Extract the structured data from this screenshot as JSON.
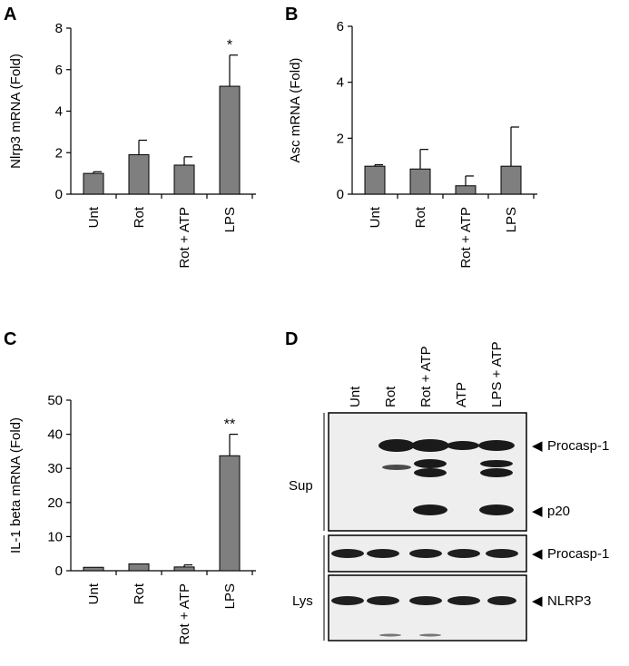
{
  "chart_data": [
    {
      "panel": "A",
      "type": "bar",
      "ylabel": "Nlrp3 mRNA (Fold)",
      "ylim": [
        0,
        8
      ],
      "yticks": [
        "0",
        "2",
        "4",
        "6",
        "8"
      ],
      "categories": [
        "Unt",
        "Rot",
        "Rot + ATP",
        "LPS"
      ],
      "values": [
        1.0,
        1.9,
        1.4,
        5.2
      ],
      "errors": [
        0.08,
        0.7,
        0.4,
        1.5
      ],
      "annotations": [
        "",
        "",
        "",
        "*"
      ],
      "bar_color": "#7f7f7f"
    },
    {
      "panel": "B",
      "type": "bar",
      "ylabel": "Asc mRNA (Fold)",
      "ylim": [
        0,
        6
      ],
      "yticks": [
        "0",
        "2",
        "4",
        "6"
      ],
      "categories": [
        "Unt",
        "Rot",
        "Rot + ATP",
        "LPS"
      ],
      "values": [
        1.0,
        0.9,
        0.3,
        1.0
      ],
      "errors": [
        0.05,
        0.7,
        0.35,
        1.4
      ],
      "annotations": [
        "",
        "",
        "",
        ""
      ],
      "bar_color": "#7f7f7f"
    },
    {
      "panel": "C",
      "type": "bar",
      "ylabel": "IL-1 beta mRNA (Fold)",
      "ylim": [
        0,
        50
      ],
      "yticks": [
        "0",
        "10",
        "20",
        "30",
        "40",
        "50"
      ],
      "categories": [
        "Unt",
        "Rot",
        "Rot + ATP",
        "LPS"
      ],
      "values": [
        1.0,
        2.0,
        1.1,
        33.7
      ],
      "errors": [
        0.0,
        0.0,
        0.6,
        6.3
      ],
      "annotations": [
        "",
        "",
        "",
        "**"
      ],
      "bar_color": "#7f7f7f"
    }
  ],
  "blot": {
    "panel": "D",
    "lanes": [
      "Unt",
      "Rot",
      "Rot + ATP",
      "ATP",
      "LPS + ATP"
    ],
    "groups": [
      {
        "label": "Sup",
        "boxes": 1
      },
      {
        "label": "Lys",
        "boxes": 2
      }
    ],
    "band_labels": [
      "Procasp-1",
      "p20",
      "Procasp-1",
      "NLRP3"
    ],
    "arrow": "◀"
  }
}
